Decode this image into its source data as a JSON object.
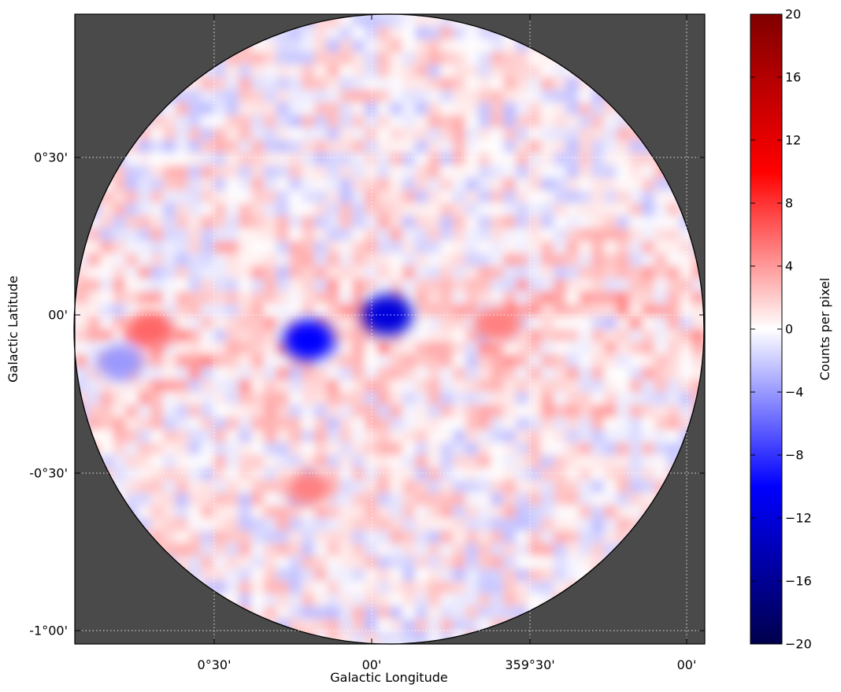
{
  "chart_data": {
    "type": "heatmap",
    "xlabel": "Galactic Longitude",
    "ylabel": "Galactic Latitude",
    "x_ticks": [
      "0°30'",
      "00'",
      "359°30'",
      "00'"
    ],
    "y_ticks": [
      "0°30'",
      "00'",
      "-0°30'",
      "-1°00'"
    ],
    "grid": true,
    "grid_style": "dotted",
    "background_color": "#4a4a4a",
    "footprint": "circular",
    "colorbar": {
      "label": "Counts per pixel",
      "range": [
        -20,
        20
      ],
      "ticks": [
        "20",
        "16",
        "12",
        "8",
        "4",
        "0",
        "−4",
        "−8",
        "−12",
        "−16",
        "−20"
      ],
      "tick_values": [
        20,
        16,
        12,
        8,
        4,
        0,
        -4,
        -8,
        -12,
        -16,
        -20
      ],
      "colormap": "seismic",
      "colors": [
        "#00004c",
        "#0000ff",
        "#ffffff",
        "#ff0000",
        "#800000"
      ]
    },
    "features": [
      {
        "lon_deg": -0.05,
        "lat_deg": 0.0,
        "value": -12
      },
      {
        "lon_deg": 0.2,
        "lat_deg": -0.08,
        "value": -10
      },
      {
        "lon_deg": 0.8,
        "lat_deg": -0.15,
        "value": -4
      },
      {
        "lon_deg": 0.7,
        "lat_deg": -0.05,
        "value": 6
      },
      {
        "lon_deg": 0.2,
        "lat_deg": -0.55,
        "value": 5
      },
      {
        "lon_deg": -0.4,
        "lat_deg": -0.03,
        "value": 5
      }
    ]
  }
}
